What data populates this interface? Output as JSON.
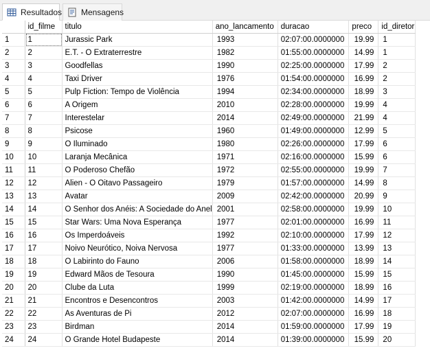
{
  "tabs": [
    {
      "label": "Resultados",
      "icon": "grid-icon",
      "active": true
    },
    {
      "label": "Mensagens",
      "icon": "messages-icon",
      "active": false
    }
  ],
  "columns": [
    "id_filme",
    "titulo",
    "ano_lancamento",
    "duracao",
    "preco",
    "id_diretor"
  ],
  "rows": [
    {
      "n": "1",
      "id_filme": "1",
      "titulo": "Jurassic Park",
      "ano_lancamento": "1993",
      "duracao": "02:07:00.0000000",
      "preco": "19.99",
      "id_diretor": "1"
    },
    {
      "n": "2",
      "id_filme": "2",
      "titulo": "E.T. - O Extraterrestre",
      "ano_lancamento": "1982",
      "duracao": "01:55:00.0000000",
      "preco": "14.99",
      "id_diretor": "1"
    },
    {
      "n": "3",
      "id_filme": "3",
      "titulo": "Goodfellas",
      "ano_lancamento": "1990",
      "duracao": "02:25:00.0000000",
      "preco": "17.99",
      "id_diretor": "2"
    },
    {
      "n": "4",
      "id_filme": "4",
      "titulo": "Taxi Driver",
      "ano_lancamento": "1976",
      "duracao": "01:54:00.0000000",
      "preco": "16.99",
      "id_diretor": "2"
    },
    {
      "n": "5",
      "id_filme": "5",
      "titulo": "Pulp Fiction: Tempo de Violência",
      "ano_lancamento": "1994",
      "duracao": "02:34:00.0000000",
      "preco": "18.99",
      "id_diretor": "3"
    },
    {
      "n": "6",
      "id_filme": "6",
      "titulo": "A Origem",
      "ano_lancamento": "2010",
      "duracao": "02:28:00.0000000",
      "preco": "19.99",
      "id_diretor": "4"
    },
    {
      "n": "7",
      "id_filme": "7",
      "titulo": "Interestelar",
      "ano_lancamento": "2014",
      "duracao": "02:49:00.0000000",
      "preco": "21.99",
      "id_diretor": "4"
    },
    {
      "n": "8",
      "id_filme": "8",
      "titulo": "Psicose",
      "ano_lancamento": "1960",
      "duracao": "01:49:00.0000000",
      "preco": "12.99",
      "id_diretor": "5"
    },
    {
      "n": "9",
      "id_filme": "9",
      "titulo": "O Iluminado",
      "ano_lancamento": "1980",
      "duracao": "02:26:00.0000000",
      "preco": "17.99",
      "id_diretor": "6"
    },
    {
      "n": "10",
      "id_filme": "10",
      "titulo": "Laranja Mecânica",
      "ano_lancamento": "1971",
      "duracao": "02:16:00.0000000",
      "preco": "15.99",
      "id_diretor": "6"
    },
    {
      "n": "11",
      "id_filme": "11",
      "titulo": "O Poderoso Chefão",
      "ano_lancamento": "1972",
      "duracao": "02:55:00.0000000",
      "preco": "19.99",
      "id_diretor": "7"
    },
    {
      "n": "12",
      "id_filme": "12",
      "titulo": "Alien - O Oitavo Passageiro",
      "ano_lancamento": "1979",
      "duracao": "01:57:00.0000000",
      "preco": "14.99",
      "id_diretor": "8"
    },
    {
      "n": "13",
      "id_filme": "13",
      "titulo": "Avatar",
      "ano_lancamento": "2009",
      "duracao": "02:42:00.0000000",
      "preco": "20.99",
      "id_diretor": "9"
    },
    {
      "n": "14",
      "id_filme": "14",
      "titulo": "O Senhor dos Anéis: A Sociedade do Anel",
      "ano_lancamento": "2001",
      "duracao": "02:58:00.0000000",
      "preco": "19.99",
      "id_diretor": "10"
    },
    {
      "n": "15",
      "id_filme": "15",
      "titulo": "Star Wars: Uma Nova Esperança",
      "ano_lancamento": "1977",
      "duracao": "02:01:00.0000000",
      "preco": "16.99",
      "id_diretor": "11"
    },
    {
      "n": "16",
      "id_filme": "16",
      "titulo": "Os Imperdoáveis",
      "ano_lancamento": "1992",
      "duracao": "02:10:00.0000000",
      "preco": "17.99",
      "id_diretor": "12"
    },
    {
      "n": "17",
      "id_filme": "17",
      "titulo": "Noivo Neurótico, Noiva Nervosa",
      "ano_lancamento": "1977",
      "duracao": "01:33:00.0000000",
      "preco": "13.99",
      "id_diretor": "13"
    },
    {
      "n": "18",
      "id_filme": "18",
      "titulo": "O Labirinto do Fauno",
      "ano_lancamento": "2006",
      "duracao": "01:58:00.0000000",
      "preco": "18.99",
      "id_diretor": "14"
    },
    {
      "n": "19",
      "id_filme": "19",
      "titulo": "Edward Mãos de Tesoura",
      "ano_lancamento": "1990",
      "duracao": "01:45:00.0000000",
      "preco": "15.99",
      "id_diretor": "15"
    },
    {
      "n": "20",
      "id_filme": "20",
      "titulo": "Clube da Luta",
      "ano_lancamento": "1999",
      "duracao": "02:19:00.0000000",
      "preco": "18.99",
      "id_diretor": "16"
    },
    {
      "n": "21",
      "id_filme": "21",
      "titulo": "Encontros e Desencontros",
      "ano_lancamento": "2003",
      "duracao": "01:42:00.0000000",
      "preco": "14.99",
      "id_diretor": "17"
    },
    {
      "n": "22",
      "id_filme": "22",
      "titulo": "As Aventuras de Pi",
      "ano_lancamento": "2012",
      "duracao": "02:07:00.0000000",
      "preco": "16.99",
      "id_diretor": "18"
    },
    {
      "n": "23",
      "id_filme": "23",
      "titulo": "Birdman",
      "ano_lancamento": "2014",
      "duracao": "01:59:00.0000000",
      "preco": "17.99",
      "id_diretor": "19"
    },
    {
      "n": "24",
      "id_filme": "24",
      "titulo": "O Grande Hotel Budapeste",
      "ano_lancamento": "2014",
      "duracao": "01:39:00.0000000",
      "preco": "15.99",
      "id_diretor": "20"
    }
  ],
  "colors": {
    "grid_line": "#e0e0e0",
    "tab_bg": "#f0f0f0",
    "icon_blue": "#2b5797"
  }
}
